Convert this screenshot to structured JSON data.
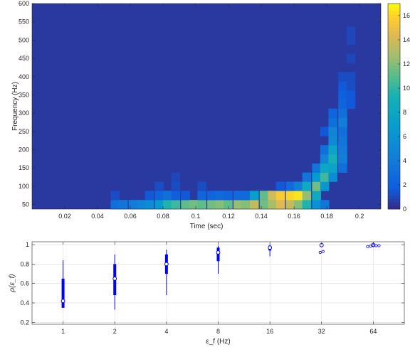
{
  "chart_data": [
    {
      "type": "heatmap",
      "title": "",
      "xlabel": "Time (sec)",
      "ylabel": "Frequency (Hz)",
      "xlim": [
        0,
        0.213
      ],
      "ylim": [
        37.5,
        600
      ],
      "x_ticks": [
        "0.02",
        "0.04",
        "0.06",
        "0.08",
        "0.1",
        "0.12",
        "0.14",
        "0.16",
        "0.18",
        "0.2"
      ],
      "x_tick_values": [
        0.02,
        0.04,
        0.06,
        0.08,
        0.1,
        0.12,
        0.14,
        0.16,
        0.18,
        0.2
      ],
      "y_ticks": [
        "50",
        "100",
        "150",
        "200",
        "250",
        "300",
        "350",
        "400",
        "450",
        "500",
        "550",
        "600"
      ],
      "y_tick_values": [
        50,
        100,
        150,
        200,
        250,
        300,
        350,
        400,
        450,
        500,
        550,
        600
      ],
      "colorbar": {
        "range": [
          0,
          17
        ],
        "ticks": [
          "0",
          "2",
          "4",
          "6",
          "8",
          "10",
          "12",
          "14",
          "16"
        ],
        "tick_values": [
          0,
          2,
          4,
          6,
          8,
          10,
          12,
          14,
          16
        ],
        "colormap": "parula"
      },
      "time_bin_width": 0.00533,
      "freq_bin_height": 25,
      "background_value": 0.5,
      "cells": [
        [
          0.048,
          50,
          3.2
        ],
        [
          0.053,
          50,
          3.6
        ],
        [
          0.059,
          50,
          4.2
        ],
        [
          0.064,
          50,
          4.8
        ],
        [
          0.069,
          50,
          5.6
        ],
        [
          0.075,
          50,
          6.8
        ],
        [
          0.08,
          50,
          9.6
        ],
        [
          0.085,
          50,
          10.4
        ],
        [
          0.091,
          50,
          11.2
        ],
        [
          0.096,
          50,
          11.6
        ],
        [
          0.101,
          50,
          11.2
        ],
        [
          0.107,
          50,
          11.6
        ],
        [
          0.112,
          50,
          12.0
        ],
        [
          0.117,
          50,
          11.2
        ],
        [
          0.123,
          50,
          12.4
        ],
        [
          0.128,
          50,
          12.0
        ],
        [
          0.133,
          50,
          13.6
        ],
        [
          0.139,
          50,
          11.6
        ],
        [
          0.144,
          50,
          12.8
        ],
        [
          0.149,
          50,
          14.4
        ],
        [
          0.155,
          50,
          13.6
        ],
        [
          0.16,
          50,
          12.0
        ],
        [
          0.165,
          50,
          9.6
        ],
        [
          0.171,
          50,
          6.0
        ],
        [
          0.176,
          50,
          3.6
        ],
        [
          0.048,
          75,
          1.2
        ],
        [
          0.069,
          75,
          1.6
        ],
        [
          0.075,
          75,
          2.4
        ],
        [
          0.08,
          75,
          3.2
        ],
        [
          0.085,
          75,
          2.0
        ],
        [
          0.091,
          75,
          1.6
        ],
        [
          0.101,
          75,
          2.4
        ],
        [
          0.107,
          75,
          2.4
        ],
        [
          0.112,
          75,
          2.8
        ],
        [
          0.117,
          75,
          2.4
        ],
        [
          0.123,
          75,
          2.8
        ],
        [
          0.128,
          75,
          2.8
        ],
        [
          0.133,
          75,
          7.2
        ],
        [
          0.139,
          75,
          11.2
        ],
        [
          0.144,
          75,
          14.0
        ],
        [
          0.149,
          75,
          15.6
        ],
        [
          0.155,
          75,
          16.0
        ],
        [
          0.16,
          75,
          16.4
        ],
        [
          0.165,
          75,
          12.4
        ],
        [
          0.171,
          75,
          8.4
        ],
        [
          0.075,
          100,
          1.2
        ],
        [
          0.085,
          100,
          1.2
        ],
        [
          0.101,
          100,
          1.2
        ],
        [
          0.149,
          100,
          1.6
        ],
        [
          0.155,
          100,
          2.8
        ],
        [
          0.16,
          100,
          4.4
        ],
        [
          0.165,
          100,
          8.4
        ],
        [
          0.171,
          100,
          11.6
        ],
        [
          0.176,
          100,
          6.4
        ],
        [
          0.085,
          125,
          1.0
        ],
        [
          0.165,
          125,
          3.6
        ],
        [
          0.171,
          125,
          6.8
        ],
        [
          0.176,
          125,
          10.4
        ],
        [
          0.181,
          125,
          5.6
        ],
        [
          0.171,
          150,
          3.6
        ],
        [
          0.176,
          150,
          8.0
        ],
        [
          0.181,
          150,
          7.6
        ],
        [
          0.187,
          150,
          3.2
        ],
        [
          0.176,
          175,
          4.8
        ],
        [
          0.181,
          175,
          9.2
        ],
        [
          0.187,
          175,
          4.4
        ],
        [
          0.176,
          200,
          3.2
        ],
        [
          0.181,
          200,
          7.6
        ],
        [
          0.187,
          200,
          4.0
        ],
        [
          0.181,
          225,
          5.2
        ],
        [
          0.187,
          225,
          3.6
        ],
        [
          0.176,
          250,
          1.6
        ],
        [
          0.181,
          250,
          4.8
        ],
        [
          0.187,
          250,
          3.2
        ],
        [
          0.181,
          275,
          3.2
        ],
        [
          0.187,
          275,
          4.4
        ],
        [
          0.181,
          300,
          2.4
        ],
        [
          0.187,
          300,
          3.2
        ],
        [
          0.187,
          325,
          2.4
        ],
        [
          0.192,
          325,
          1.6
        ],
        [
          0.187,
          350,
          2.0
        ],
        [
          0.192,
          350,
          1.6
        ],
        [
          0.187,
          375,
          1.6
        ],
        [
          0.192,
          375,
          1.2
        ],
        [
          0.187,
          400,
          1.2
        ],
        [
          0.192,
          400,
          1.2
        ],
        [
          0.192,
          450,
          1.0
        ],
        [
          0.192,
          500,
          1.0
        ],
        [
          0.192,
          525,
          1.0
        ]
      ]
    },
    {
      "type": "boxplot",
      "title": "",
      "xlabel": "ε_f (Hz)",
      "ylabel": "ρ(ε_f)",
      "categories": [
        "1",
        "2",
        "4",
        "8",
        "16",
        "32",
        "64"
      ],
      "ylim": [
        0.18,
        1.03
      ],
      "y_ticks": [
        "0.2",
        "0.4",
        "0.6",
        "0.8",
        "1"
      ],
      "y_tick_values": [
        0.2,
        0.4,
        0.6,
        0.8,
        1.0
      ],
      "grid": true,
      "color": "#0000ff",
      "boxes": [
        {
          "whisker_low": 0.35,
          "q1": 0.35,
          "median": 0.42,
          "q3": 0.65,
          "whisker_high": 0.84,
          "outliers": []
        },
        {
          "whisker_low": 0.33,
          "q1": 0.48,
          "median": 0.65,
          "q3": 0.8,
          "whisker_high": 0.9,
          "outliers": []
        },
        {
          "whisker_low": 0.48,
          "q1": 0.7,
          "median": 0.8,
          "q3": 0.9,
          "whisker_high": 0.95,
          "outliers": []
        },
        {
          "whisker_low": 0.7,
          "q1": 0.83,
          "median": 0.92,
          "q3": 0.97,
          "whisker_high": 0.99,
          "outliers": []
        },
        {
          "whisker_low": 0.88,
          "q1": 0.94,
          "median": 0.97,
          "q3": 0.99,
          "whisker_high": 1.0,
          "outliers": []
        },
        {
          "whisker_low": 0.98,
          "q1": 0.99,
          "median": 0.995,
          "q3": 1.0,
          "whisker_high": 1.0,
          "outliers": [
            0.92,
            0.93
          ]
        },
        {
          "whisker_low": 0.99,
          "q1": 0.995,
          "median": 0.998,
          "q3": 1.0,
          "whisker_high": 1.0,
          "outliers": [
            0.98,
            0.985,
            0.99,
            0.99,
            0.99
          ]
        }
      ]
    }
  ]
}
